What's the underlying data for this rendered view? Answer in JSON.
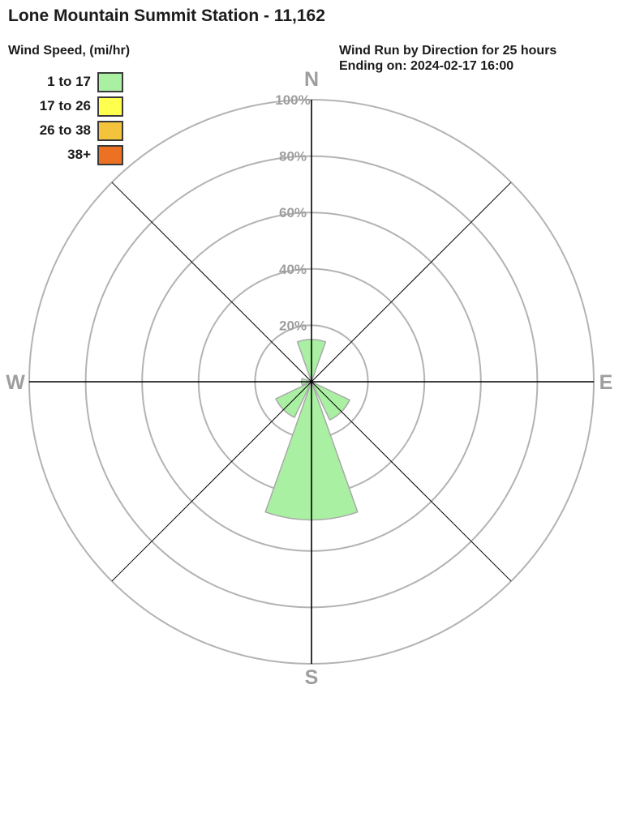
{
  "header": {
    "title": "Lone Mountain Summit Station - 11,162"
  },
  "legend": {
    "title": "Wind Speed, (mi/hr)",
    "items": [
      {
        "label": "1 to 17",
        "color": "#a9f0a2"
      },
      {
        "label": "17 to 26",
        "color": "#ffff4e"
      },
      {
        "label": "26 to 38",
        "color": "#f4c33c"
      },
      {
        "label": "38+",
        "color": "#ec7123"
      }
    ]
  },
  "info": {
    "line1": "Wind Run by Direction for 25 hours",
    "line2": "Ending on: 2024-02-17 16:00"
  },
  "chart_data": {
    "type": "windrose",
    "title": "Lone Mountain Summit Station - 11,162",
    "subtitle": "Wind Run by Direction for 25 hours",
    "ending_label": "Ending on: 2024-02-17 16:00",
    "units": "percent of wind run",
    "max_percent": 100,
    "ring_ticks": [
      {
        "value": 20,
        "label": "20%"
      },
      {
        "value": 40,
        "label": "40%"
      },
      {
        "value": 60,
        "label": "60%"
      },
      {
        "value": 80,
        "label": "80%"
      },
      {
        "value": 100,
        "label": "100%"
      }
    ],
    "compass_labels": [
      {
        "dir": "N",
        "azimuth": 0
      },
      {
        "dir": "E",
        "azimuth": 90
      },
      {
        "dir": "S",
        "azimuth": 180
      },
      {
        "dir": "W",
        "azimuth": 270
      }
    ],
    "directions": [
      "N",
      "NE",
      "E",
      "SE",
      "S",
      "SW",
      "W",
      "NW"
    ],
    "series": [
      {
        "name": "1 to 17",
        "color": "#a9f0a2",
        "values": [
          15,
          0,
          0,
          15,
          49,
          14,
          3.5,
          0
        ]
      }
    ],
    "petal_width_deg": 39,
    "colors": {
      "ring": "#b3b3b3",
      "axis": "#000000",
      "diagonal": "#000000",
      "gray_label": "#9e9e9e",
      "petal_stroke": "#a9a9a9"
    }
  }
}
